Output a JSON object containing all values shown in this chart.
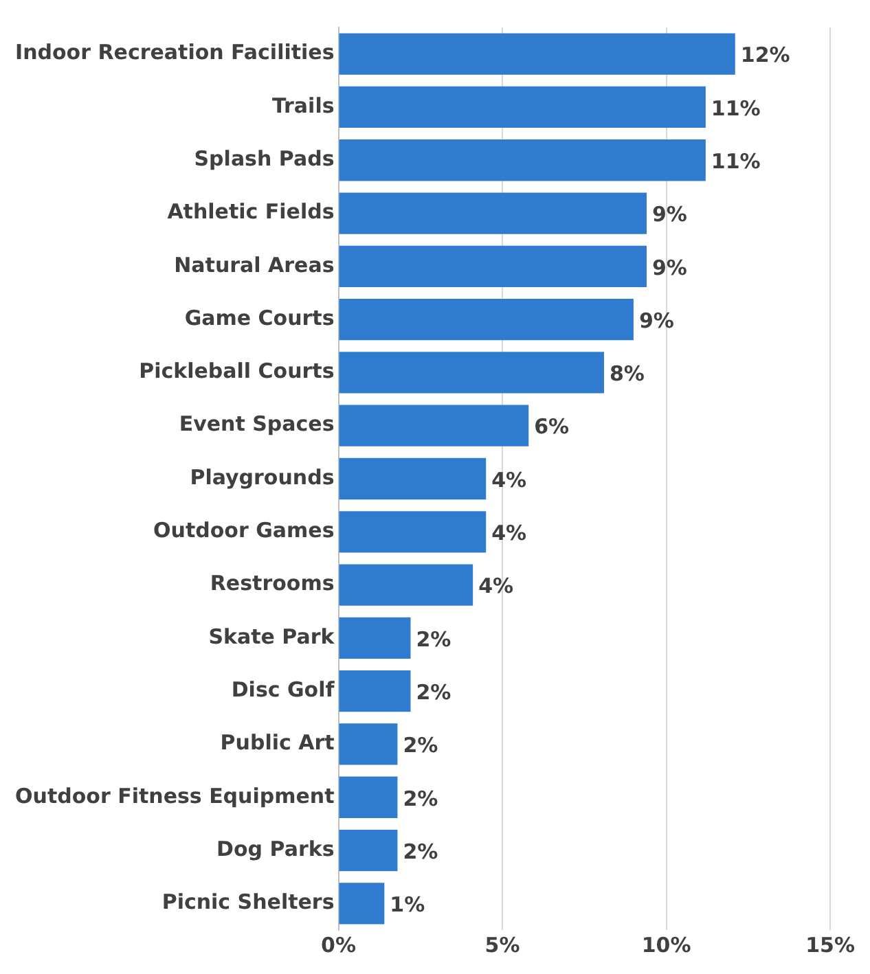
{
  "chart_data": {
    "type": "bar",
    "orientation": "horizontal",
    "categories": [
      "Indoor Recreation Facilities",
      "Trails",
      "Splash Pads",
      "Athletic Fields",
      "Natural Areas",
      "Game Courts",
      "Pickleball Courts",
      "Event Spaces",
      "Playgrounds",
      "Outdoor Games",
      "Restrooms",
      "Skate Park",
      "Disc Golf",
      "Public Art",
      "Outdoor Fitness Equipment",
      "Dog Parks",
      "Picnic Shelters"
    ],
    "values": [
      12.1,
      11.2,
      11.2,
      9.4,
      9.4,
      9.0,
      8.1,
      5.8,
      4.5,
      4.5,
      4.1,
      2.2,
      2.2,
      1.8,
      1.8,
      1.8,
      1.4
    ],
    "value_labels": [
      "12%",
      "11%",
      "11%",
      "9%",
      "9%",
      "9%",
      "8%",
      "6%",
      "4%",
      "4%",
      "4%",
      "2%",
      "2%",
      "2%",
      "2%",
      "2%",
      "1%"
    ],
    "color": "#2e7bcf",
    "xlim": [
      0,
      15
    ],
    "xticks": [
      {
        "value": 0,
        "label": "0%"
      },
      {
        "value": 5,
        "label": "5%"
      },
      {
        "value": 10,
        "label": "10%"
      },
      {
        "value": 15,
        "label": "15%"
      }
    ],
    "grid": "x",
    "legend": false
  }
}
